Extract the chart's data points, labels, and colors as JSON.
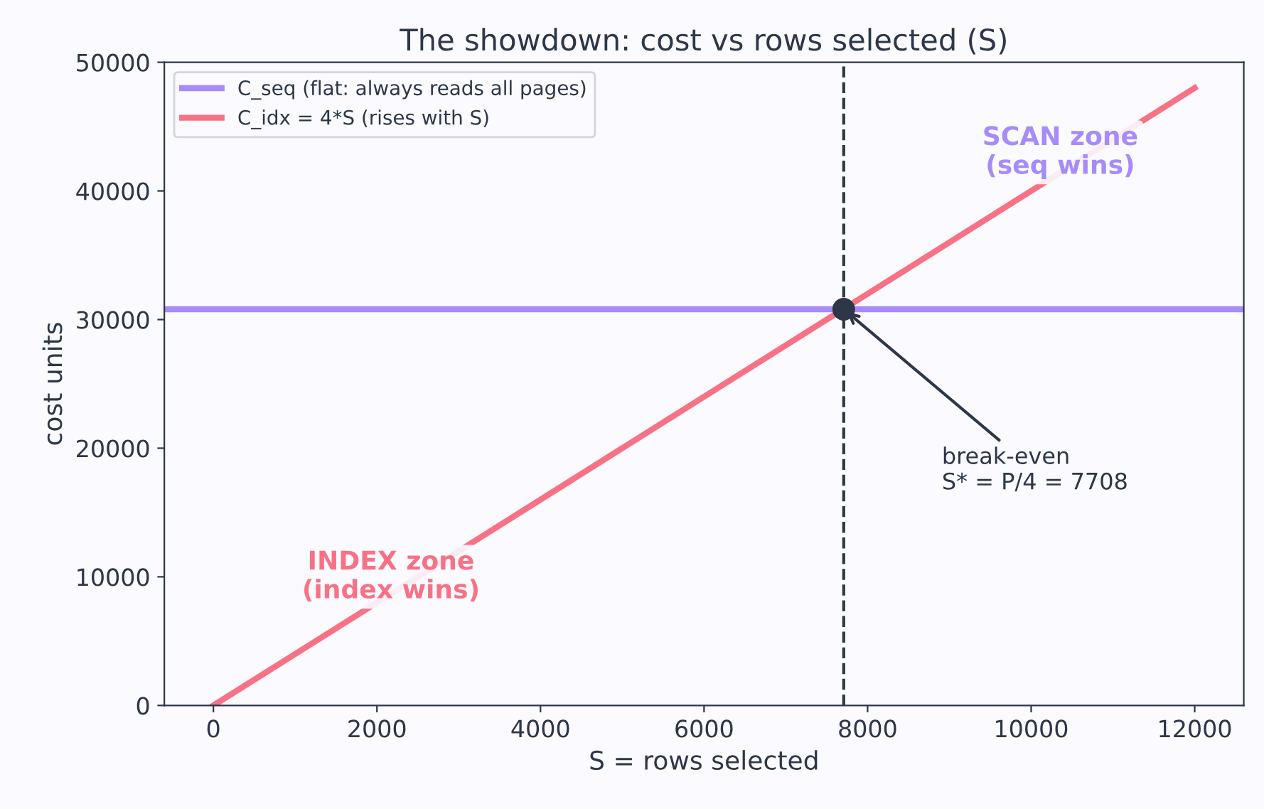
{
  "chart_data": {
    "type": "line",
    "title": "The showdown: cost vs rows selected (S)",
    "xlabel": "S = rows selected",
    "ylabel": "cost units",
    "series": [
      {
        "name": "C_seq (flat: always reads all pages)",
        "color": "#a78bfa",
        "x": [
          -600,
          12600
        ],
        "values": [
          30800,
          30800
        ]
      },
      {
        "name": "C_idx = 4*S (rises with S)",
        "color": "#f87185",
        "x": [
          0,
          12000
        ],
        "values": [
          0,
          48000
        ]
      },
      {
        "type": "scatter",
        "color": "#2d3748",
        "marker": "circle",
        "x": [
          7708
        ],
        "values": [
          30800
        ]
      }
    ],
    "ref_lines": [
      {
        "axis": "x",
        "value": 7708,
        "color": "#2d3748",
        "line_style": "dashed"
      }
    ],
    "annotations": [
      {
        "text": "break-even\nS* = P/4 = 7708",
        "x": 7708,
        "y": 30800
      },
      "SCAN zone\n(seq wins)",
      "INDEX zone\n(index wins)"
    ],
    "xlim": [
      -600,
      12600
    ],
    "xticks": [
      0,
      2000,
      4000,
      6000,
      8000,
      10000,
      12000
    ],
    "ylim": [
      0,
      50000
    ],
    "yticks": [
      0,
      10000,
      20000,
      30000,
      40000,
      50000
    ],
    "legend": "top left",
    "grid": false,
    "line_style": "solid"
  }
}
